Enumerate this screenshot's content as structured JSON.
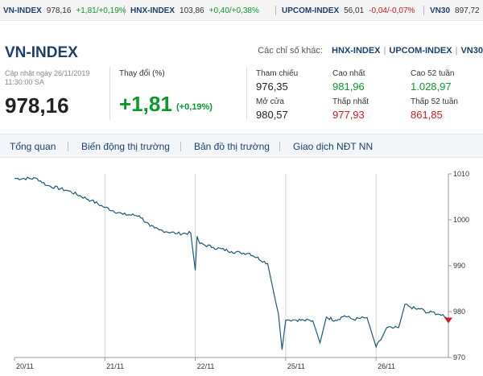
{
  "ticker": [
    {
      "name": "VN-INDEX",
      "value": "978,16",
      "change": "+1,81/+0,19%",
      "dir": "up"
    },
    {
      "name": "HNX-INDEX",
      "value": "103,86",
      "change": "+0,40/+0,38%",
      "dir": "up"
    },
    {
      "name": "UPCOM-INDEX",
      "value": "56,01",
      "change": "-0,04/-0,07%",
      "dir": "dn"
    },
    {
      "name": "VN30",
      "value": "897,72",
      "change": "",
      "dir": "up"
    }
  ],
  "header": {
    "title": "VN-INDEX",
    "others_label": "Các chỉ số khác:",
    "others_links": [
      "HNX-INDEX",
      "UPCOM-INDEX",
      "VN30"
    ]
  },
  "summary": {
    "updated_line1": "Cập nhật ngày 26/11/2019",
    "updated_line2": "11:30:00 SA",
    "price": "978,16",
    "change_label": "Thay đổi (%)",
    "change_value": "+1,81",
    "change_pct": "(+0,19%)"
  },
  "stats": {
    "ref_label": "Tham chiếu",
    "ref_value": "976,35",
    "high_label": "Cao nhất",
    "high_value": "981,96",
    "high52_label": "Cao 52 tuần",
    "high52_value": "1.028,97",
    "open_label": "Mở cửa",
    "open_value": "980,57",
    "low_label": "Thấp nhất",
    "low_value": "977,93",
    "low52_label": "Thấp 52 tuần",
    "low52_value": "861,85"
  },
  "tabs": [
    "Tổng quan",
    "Biến động thị trường",
    "Bản đồ thị trường",
    "Giao dịch NĐT NN"
  ],
  "colors": {
    "up": "#0a9a28",
    "down": "#d21c1c",
    "line": "#1a5a7a",
    "brand": "#1d3f6e"
  },
  "chart_data": {
    "type": "line",
    "x_ticks": [
      "20/11",
      "21/11",
      "22/11",
      "25/11",
      "26/11"
    ],
    "y_ticks": [
      970,
      980,
      990,
      1000,
      1010
    ],
    "ylim": [
      970,
      1010
    ],
    "grid": true,
    "y_axis_side": "right",
    "series": [
      {
        "x": [
          0,
          0.25,
          0.36,
          0.6,
          0.85,
          1,
          1.2,
          1.38,
          1.5,
          1.55,
          1.6,
          1.8,
          1.95,
          2,
          2.02,
          2.05,
          2.2,
          2.4,
          2.5,
          2.6,
          2.8,
          2.88,
          2.92,
          2.96,
          3,
          3.02,
          3.1,
          3.2,
          3.3,
          3.38,
          3.45,
          3.55,
          3.65,
          3.75,
          3.9,
          4,
          4.05,
          4.12,
          4.18,
          4.25,
          4.32,
          4.38,
          4.45,
          4.5,
          4.55,
          4.62,
          4.7,
          4.76,
          4.8
        ],
        "values": [
          1009.0,
          1009.0,
          1007.5,
          1006.3,
          1004.2,
          1002.7,
          1001.2,
          1000.9,
          998.6,
          998.2,
          997.8,
          997.0,
          997.1,
          989.0,
          996.4,
          994.8,
          994.0,
          993.1,
          992.8,
          992.7,
          990.5,
          983.0,
          979.5,
          971.7,
          978.1,
          978.2,
          978.2,
          978.1,
          978.0,
          973.2,
          978.8,
          978.1,
          979.1,
          978.3,
          978.7,
          972.3,
          973.8,
          976.5,
          976.4,
          976.5,
          981.6,
          981.0,
          980.5,
          980.7,
          979.7,
          979.9,
          979.4,
          978.8,
          978.2
        ]
      }
    ],
    "last_value": 978.16
  }
}
